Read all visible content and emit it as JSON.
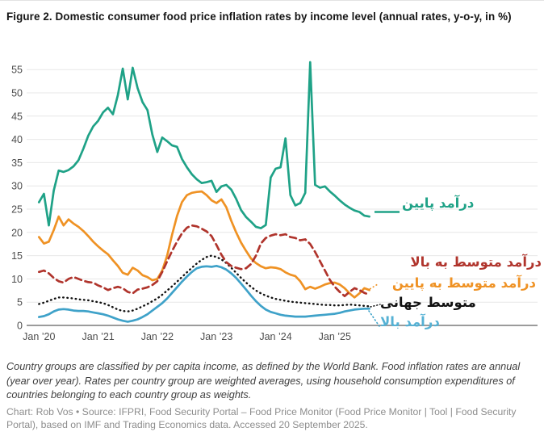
{
  "title": "Figure 2. Domestic consumer food price inflation rates by income level (annual rates, y-o-y, in %)",
  "note": "Country groups are classified by per capita income, as defined by the World Bank. Food inflation rates are annual (year over year). Rates per country group are weighted averages, using household consumption expenditures of countries belonging to each country group as weights.",
  "credit": "Chart: Rob Vos • Source: IFPRI, Food Security Portal – Food Price Monitor (Food Price Monitor | Tool | Food Security Portal), based on IMF and Trading Economics data. Accessed 20 September 2025.",
  "chart_data": {
    "type": "line",
    "title": "Domestic consumer food price inflation rates by income level",
    "x_unit": "month",
    "x_start": "Jan 2020",
    "x_end": "Aug 2025",
    "x_tick_labels": [
      "Jan ’20",
      "Jan ’21",
      "Jan ’22",
      "Jan ’23",
      "Jan ’24",
      "Jan ’25"
    ],
    "y_ticks": [
      0,
      5,
      10,
      15,
      20,
      25,
      30,
      35,
      40,
      45,
      50,
      55
    ],
    "ylim": [
      0,
      57.5
    ],
    "grid": "horizontal",
    "legend_position": "right-edge-annotations",
    "series": [
      {
        "name": "world-average",
        "label": "متوسط جهانی",
        "color": "#111111",
        "style": "dotted",
        "values": [
          4.6,
          4.9,
          5.3,
          5.7,
          6.0,
          6.0,
          5.9,
          5.8,
          5.6,
          5.5,
          5.4,
          5.2,
          5.0,
          4.8,
          4.4,
          3.9,
          3.4,
          3.1,
          3.0,
          3.2,
          3.6,
          4.1,
          4.6,
          5.2,
          5.8,
          6.6,
          7.5,
          8.4,
          9.4,
          10.4,
          11.4,
          12.4,
          13.3,
          14.1,
          14.7,
          15.0,
          14.7,
          14.2,
          13.4,
          12.4,
          11.3,
          10.2,
          9.2,
          8.3,
          7.5,
          6.9,
          6.4,
          6.0,
          5.7,
          5.5,
          5.3,
          5.1,
          5.0,
          4.9,
          4.8,
          4.7,
          4.6,
          4.5,
          4.4,
          4.4,
          4.3,
          4.3,
          4.4,
          4.5,
          4.4,
          4.3,
          4.2,
          4.1
        ]
      },
      {
        "name": "high-income",
        "label": "درآمد بالا",
        "color": "#3fa2c9",
        "style": "solid",
        "values": [
          1.8,
          2.0,
          2.4,
          3.0,
          3.4,
          3.5,
          3.4,
          3.2,
          3.1,
          3.1,
          3.0,
          2.8,
          2.6,
          2.4,
          2.1,
          1.7,
          1.3,
          1.0,
          0.8,
          1.0,
          1.3,
          1.8,
          2.4,
          3.2,
          4.0,
          4.8,
          5.8,
          7.0,
          8.2,
          9.4,
          10.5,
          11.5,
          12.3,
          12.6,
          12.7,
          12.6,
          12.8,
          12.5,
          12.0,
          11.2,
          10.2,
          9.0,
          7.7,
          6.4,
          5.2,
          4.2,
          3.4,
          2.9,
          2.6,
          2.3,
          2.1,
          2.0,
          1.9,
          1.9,
          1.9,
          2.0,
          2.1,
          2.2,
          2.3,
          2.4,
          2.5,
          2.7,
          3.0,
          3.2,
          3.4,
          3.5,
          3.6,
          3.6
        ]
      },
      {
        "name": "lower-middle-income",
        "label": "درآمد متوسط به پایین",
        "color": "#ef9224",
        "style": "solid",
        "values": [
          19.0,
          17.6,
          18.0,
          20.5,
          23.4,
          21.5,
          22.8,
          21.9,
          21.2,
          20.3,
          19.2,
          18.0,
          17.0,
          16.1,
          15.3,
          14.0,
          12.8,
          11.3,
          10.9,
          12.4,
          11.8,
          10.8,
          10.4,
          9.7,
          10.0,
          11.8,
          15.0,
          19.5,
          23.5,
          26.5,
          28.0,
          28.5,
          28.7,
          28.8,
          28.0,
          26.9,
          26.3,
          27.1,
          25.4,
          22.5,
          20.0,
          17.8,
          16.0,
          14.4,
          13.4,
          12.7,
          12.3,
          12.5,
          12.4,
          12.1,
          11.4,
          10.9,
          10.6,
          9.5,
          7.8,
          8.3,
          7.9,
          8.3,
          8.8,
          9.1,
          9.2,
          8.8,
          8.0,
          6.9,
          6.0,
          6.9,
          8.0,
          7.6
        ]
      },
      {
        "name": "upper-middle-income",
        "label": "درآمد متوسط به بالا",
        "color": "#b0342c",
        "style": "dashed",
        "values": [
          11.5,
          11.8,
          11.2,
          10.2,
          9.5,
          9.2,
          10.0,
          10.4,
          10.0,
          9.6,
          9.3,
          9.2,
          8.6,
          8.2,
          7.6,
          8.0,
          8.3,
          8.0,
          7.2,
          6.9,
          7.7,
          7.9,
          8.2,
          8.7,
          9.5,
          11.5,
          13.8,
          16.0,
          18.0,
          19.8,
          21.0,
          21.5,
          21.3,
          20.8,
          20.2,
          19.2,
          17.3,
          15.2,
          13.6,
          12.8,
          12.4,
          12.1,
          12.3,
          13.2,
          15.0,
          17.6,
          18.8,
          19.3,
          19.6,
          19.4,
          19.6,
          19.0,
          18.8,
          18.3,
          18.5,
          17.5,
          15.8,
          13.8,
          11.8,
          9.8,
          8.3,
          7.2,
          6.3,
          7.2,
          8.0,
          7.6,
          7.0,
          6.6
        ]
      },
      {
        "name": "low-income",
        "label": "درآمد پایین",
        "color": "#1fa287",
        "style": "solid",
        "values": [
          26.5,
          28.3,
          21.5,
          29.0,
          33.3,
          33.0,
          33.4,
          34.2,
          35.5,
          38.0,
          40.8,
          42.8,
          44.0,
          45.8,
          46.8,
          45.4,
          49.5,
          55.2,
          48.6,
          55.4,
          51.0,
          48.0,
          46.3,
          41.0,
          37.3,
          40.4,
          39.6,
          38.7,
          38.4,
          35.8,
          34.0,
          32.5,
          31.4,
          30.6,
          30.8,
          31.1,
          28.7,
          29.9,
          30.2,
          29.2,
          27.2,
          24.8,
          23.3,
          22.3,
          21.2,
          20.9,
          21.6,
          31.8,
          33.7,
          34.0,
          40.2,
          28.0,
          25.8,
          26.3,
          28.5,
          56.6,
          30.2,
          29.6,
          29.9,
          28.8,
          27.9,
          26.9,
          26.0,
          25.3,
          24.7,
          24.4,
          23.6,
          23.4
        ]
      }
    ]
  }
}
